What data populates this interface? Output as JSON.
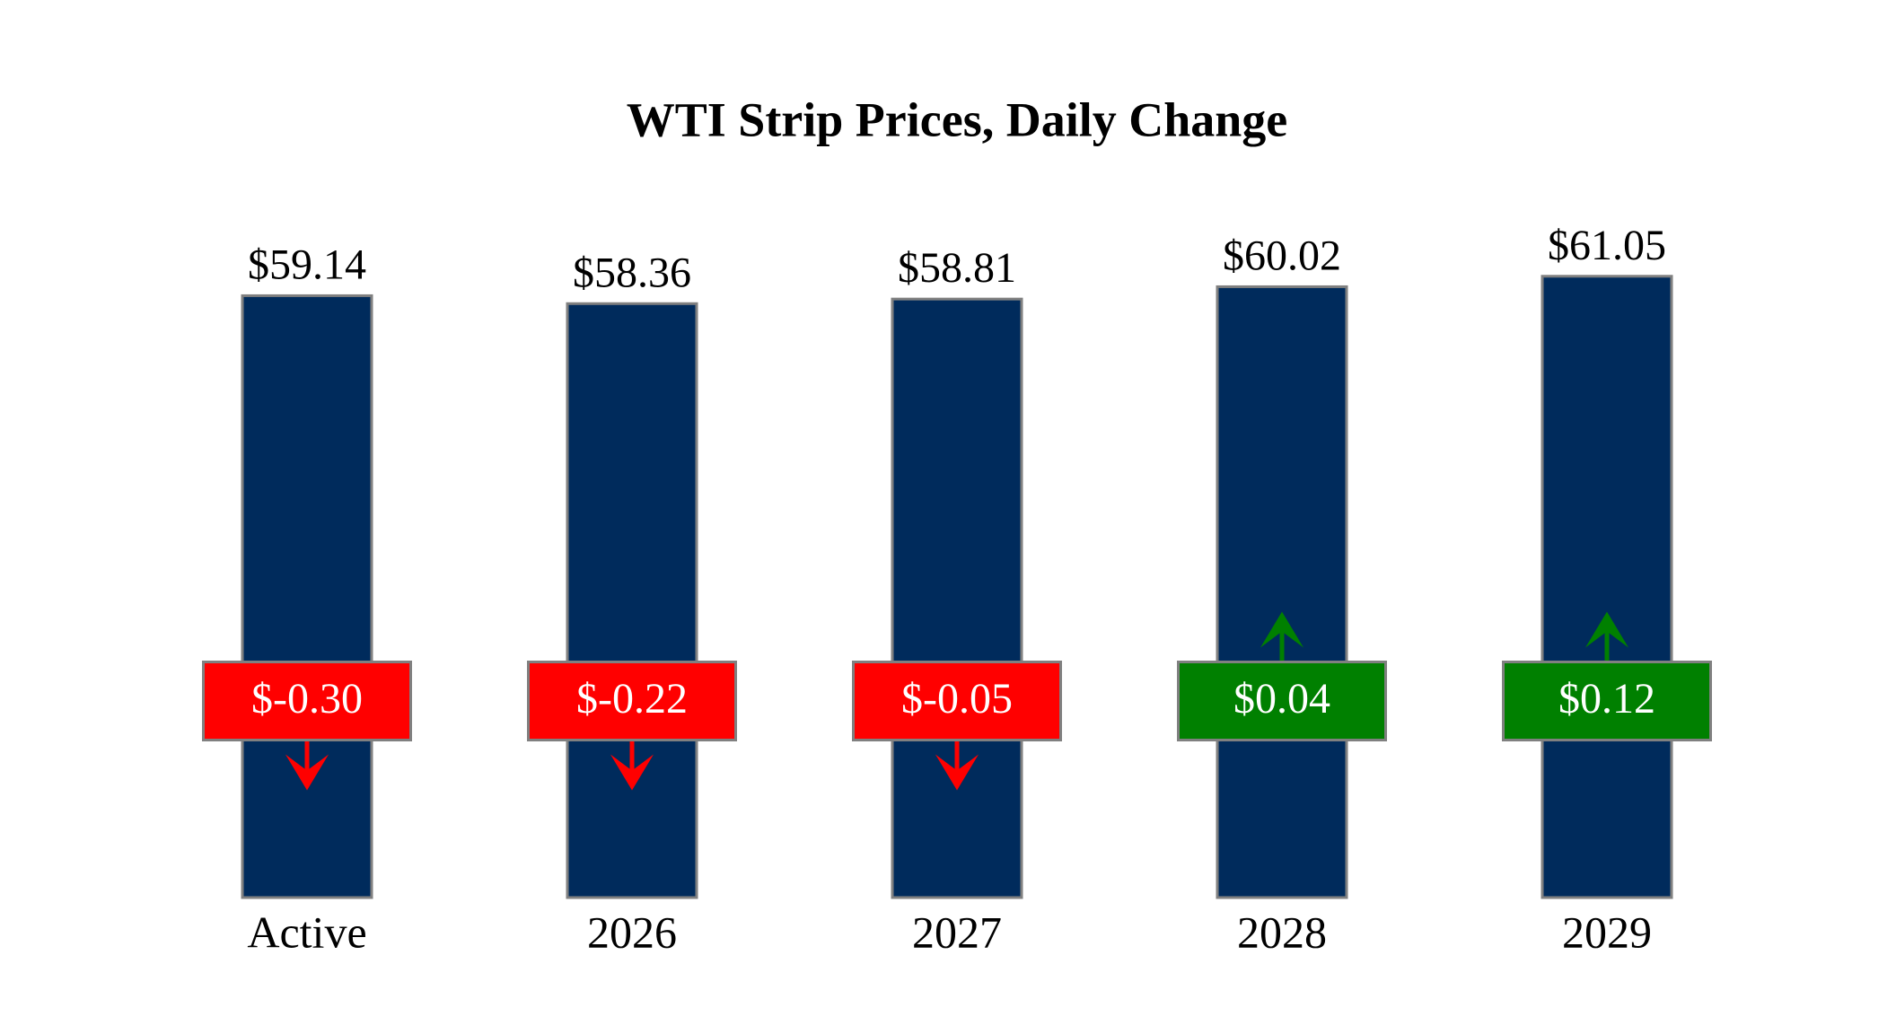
{
  "chart_data": {
    "type": "bar",
    "title": "WTI Strip Prices, Daily Change",
    "categories": [
      "Active",
      "2026",
      "2027",
      "2028",
      "2029"
    ],
    "values": [
      59.14,
      58.36,
      58.81,
      60.02,
      61.05
    ],
    "value_labels": [
      "$59.14",
      "$58.36",
      "$58.81",
      "$60.02",
      "$61.05"
    ],
    "changes": [
      -0.3,
      -0.22,
      -0.05,
      0.04,
      0.12
    ],
    "change_labels": [
      "$-0.30",
      "$-0.22",
      "$-0.05",
      "$0.04",
      "$0.12"
    ],
    "color": "#002b5c",
    "up_color": "#008000",
    "down_color": "#ff0000",
    "ylim": [
      0,
      62
    ]
  }
}
